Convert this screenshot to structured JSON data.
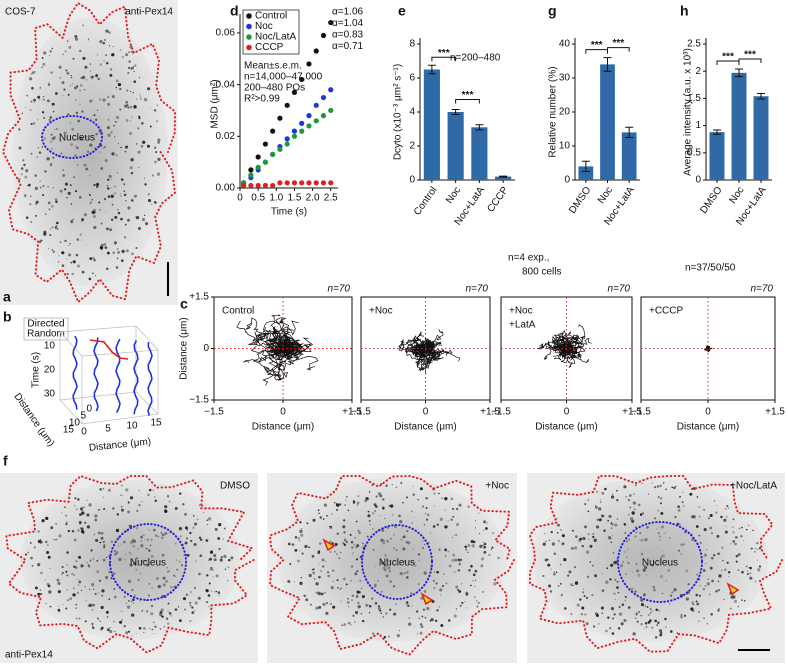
{
  "figure": {
    "panel_a": {
      "label": "a",
      "cell_line": "COS-7",
      "stain": "anti-Pex14",
      "nucleus": "Nucleus"
    },
    "panel_b": {
      "label": "b",
      "legend": [
        "Directed",
        "Random"
      ],
      "z_label": "Time (s)",
      "z_ticks": [
        10,
        20,
        30
      ],
      "y_label": "Distance (μm)",
      "y_ticks": [
        0,
        5,
        10,
        15
      ],
      "x_label": "Distance (μm)",
      "x_ticks": [
        0,
        5,
        10,
        15
      ]
    },
    "panel_f": {
      "label": "f",
      "stain": "anti-Pex14",
      "images": [
        {
          "condition": "DMSO",
          "nucleus": "Nucleus"
        },
        {
          "condition": "+Noc",
          "nucleus": "Nucleus"
        },
        {
          "condition": "+Noc/LatA",
          "nucleus": "Nucleus"
        }
      ]
    }
  },
  "chart_data": [
    {
      "label": "d",
      "type": "scatter",
      "x_label": "Time (s)",
      "y_label": "MSD (μm²)",
      "x": [
        0.1,
        0.3,
        0.5,
        0.7,
        0.9,
        1.1,
        1.3,
        1.5,
        1.7,
        1.9,
        2.1,
        2.3,
        2.5
      ],
      "xlim": [
        0,
        2.7
      ],
      "ylim": [
        0,
        0.065
      ],
      "xticks": [
        0,
        0.5,
        {
          "value": 1,
          "label": "1.0"
        },
        1.5,
        {
          "value": 2,
          "label": "2.0"
        },
        2.5
      ],
      "yticks": [
        {
          "value": 0,
          "label": "0.00"
        },
        0.02,
        0.04,
        0.06
      ],
      "legend": "upper left",
      "series": [
        {
          "name": "Control",
          "color": "#111111",
          "alpha": "α=1.06",
          "values": [
            0.002,
            0.007,
            0.012,
            0.017,
            0.022,
            0.027,
            0.032,
            0.037,
            0.042,
            0.048,
            0.053,
            0.059,
            0.064
          ]
        },
        {
          "name": "Noc",
          "color": "#2233dd",
          "alpha": "α=1.04",
          "values": [
            0.001,
            0.004,
            0.007,
            0.01,
            0.013,
            0.016,
            0.019,
            0.022,
            0.025,
            0.028,
            0.032,
            0.035,
            0.038
          ]
        },
        {
          "name": "Noc/LatA",
          "color": "#1a9a3a",
          "alpha": "α=0.83",
          "values": [
            0.002,
            0.005,
            0.008,
            0.01,
            0.013,
            0.015,
            0.017,
            0.02,
            0.022,
            0.024,
            0.026,
            0.028,
            0.03
          ]
        },
        {
          "name": "CCCP",
          "color": "#e02020",
          "alpha": "α=0.71",
          "values": [
            0.001,
            0.001,
            0.001,
            0.001,
            0.001,
            0.002,
            0.002,
            0.002,
            0.002,
            0.002,
            0.002,
            0.002,
            0.002
          ]
        }
      ],
      "annotations": [
        "Mean±s.e.m.",
        "n=14,000–47,000",
        "200–480 POs",
        "R²>0.99"
      ]
    },
    {
      "label": "e",
      "type": "bar",
      "y_label": "Dcyto (x10⁻³ μm² s⁻¹)",
      "categories": [
        "Control",
        "Noc",
        "Noc+LatA",
        "CCCP"
      ],
      "values": [
        6.5,
        4.0,
        3.1,
        0.2
      ],
      "errors": [
        0.25,
        0.15,
        0.15,
        0.03
      ],
      "color": "#2f6aa6",
      "ylim": [
        0,
        8
      ],
      "yticks": [
        0,
        2,
        4,
        6,
        8
      ],
      "significance": [
        {
          "label": "***",
          "pair": [
            "Control",
            "Noc"
          ]
        },
        {
          "label": "***",
          "pair": [
            "Noc",
            "Noc+LatA"
          ]
        }
      ],
      "annotations": [
        "n=200–480"
      ]
    },
    {
      "label": "g",
      "type": "bar",
      "y_label": "Relative number (%)",
      "categories": [
        "DMSO",
        "Noc",
        "Noc+LatA"
      ],
      "values": [
        4,
        34,
        14
      ],
      "errors": [
        1.5,
        2,
        1.5
      ],
      "color": "#2f6aa6",
      "ylim": [
        0,
        40
      ],
      "yticks": [
        0,
        10,
        20,
        30,
        40
      ],
      "significance": [
        {
          "label": "***",
          "pair": [
            "DMSO",
            "Noc"
          ]
        },
        {
          "label": "***",
          "pair": [
            "Noc",
            "Noc+LatA"
          ]
        }
      ],
      "annotations": [
        "n=4 exp.,",
        "800 cells"
      ]
    },
    {
      "label": "h",
      "type": "bar",
      "y_label": "Average intensity (a.u. x 10³)",
      "categories": [
        "DMSO",
        "Noc",
        "Noc+LatA"
      ],
      "values": [
        0.88,
        1.97,
        1.54
      ],
      "errors": [
        0.04,
        0.07,
        0.05
      ],
      "color": "#2f6aa6",
      "ylim": [
        0,
        2.5
      ],
      "yticks": [
        0,
        0.5,
        1,
        1.5,
        2,
        2.5
      ],
      "significance": [
        {
          "label": "***",
          "pair": [
            "DMSO",
            "Noc"
          ]
        },
        {
          "label": "***",
          "pair": [
            "Noc",
            "Noc+LatA"
          ]
        }
      ],
      "annotations": [
        "n=37/50/50"
      ]
    },
    {
      "label": "c",
      "type": "trajectory",
      "x_label": "Distance (μm)",
      "y_label": "Distance (μm)",
      "xlim": [
        -1.5,
        1.5
      ],
      "ylim": [
        -1.5,
        1.5
      ],
      "xticks": [
        {
          "value": -1.5,
          "label": "−1.5"
        },
        0,
        {
          "value": 1.5,
          "label": "+1.5"
        }
      ],
      "yticks": [
        {
          "value": -1.5,
          "label": "−1.5"
        },
        0,
        {
          "value": 1.5,
          "label": "+1.5"
        }
      ],
      "panels": [
        {
          "condition": [
            "Control"
          ],
          "n": "n=70"
        },
        {
          "condition": [
            "+Noc"
          ],
          "n": "n=70"
        },
        {
          "condition": [
            "+Noc",
            "+LatA"
          ],
          "n": "n=70"
        },
        {
          "condition": [
            "+CCCP"
          ],
          "n": "n=70"
        }
      ]
    }
  ]
}
